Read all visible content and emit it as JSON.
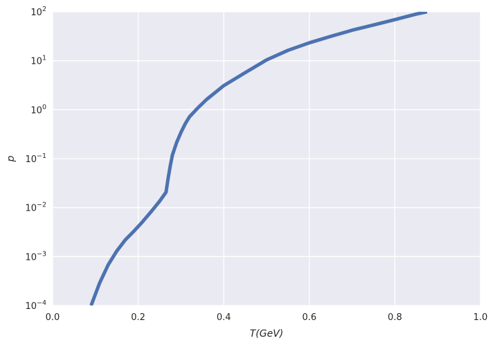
{
  "chart_data": {
    "type": "line",
    "xlabel": "T(GeV)",
    "ylabel": "p",
    "xlim": [
      0.0,
      1.0
    ],
    "ylim": [
      0.0001,
      100
    ],
    "yscale": "log",
    "grid": true,
    "background_color": "#eaeaf2",
    "grid_color": "#ffffff",
    "line_color": "#4c72b0",
    "x_ticks": [
      0.0,
      0.2,
      0.4,
      0.6,
      0.8,
      1.0
    ],
    "x_tick_labels": [
      "0.0",
      "0.2",
      "0.4",
      "0.6",
      "0.8",
      "1.0"
    ],
    "y_ticks": [
      0.0001,
      0.001,
      0.01,
      0.1,
      1,
      10,
      100
    ],
    "y_tick_labels": [
      {
        "base": "10",
        "exp": "−4"
      },
      {
        "base": "10",
        "exp": "−3"
      },
      {
        "base": "10",
        "exp": "−2"
      },
      {
        "base": "10",
        "exp": "−1"
      },
      {
        "base": "10",
        "exp": "0"
      },
      {
        "base": "10",
        "exp": "1"
      },
      {
        "base": "10",
        "exp": "2"
      }
    ],
    "series": [
      {
        "x": [
          0.09,
          0.11,
          0.13,
          0.15,
          0.17,
          0.19,
          0.21,
          0.23,
          0.25,
          0.265,
          0.27,
          0.275,
          0.28,
          0.29,
          0.3,
          0.31,
          0.32,
          0.34,
          0.36,
          0.4,
          0.45,
          0.5,
          0.55,
          0.6,
          0.65,
          0.7,
          0.75,
          0.8,
          0.85,
          0.875
        ],
        "y": [
          0.0001,
          0.00029,
          0.00068,
          0.0013,
          0.0022,
          0.0033,
          0.0051,
          0.0082,
          0.0135,
          0.0206,
          0.04,
          0.072,
          0.118,
          0.215,
          0.344,
          0.517,
          0.717,
          1.1,
          1.62,
          3.1,
          5.7,
          10.4,
          16.3,
          23.2,
          31.5,
          42.0,
          53.7,
          69.2,
          89.7,
          100.0
        ]
      }
    ]
  }
}
